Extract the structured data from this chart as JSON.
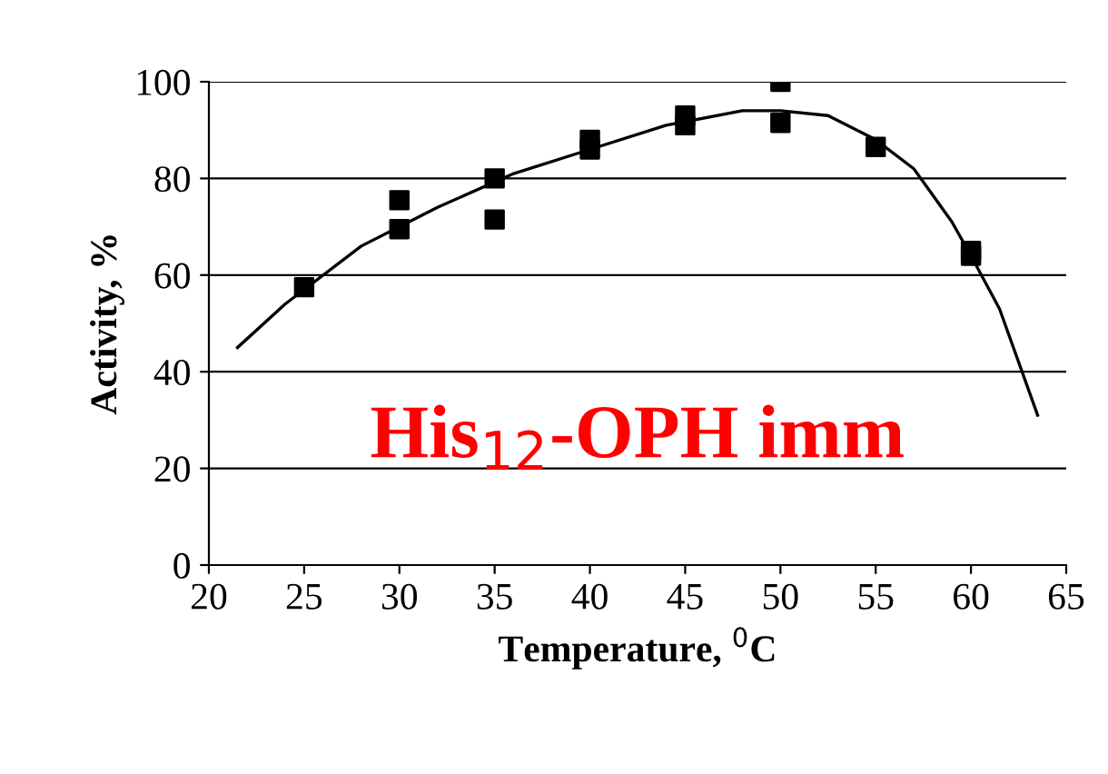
{
  "chart_data": {
    "type": "scatter",
    "xlabel": "Temperature, $^{0}$C",
    "ylabel": "Activity, %",
    "xlim": [
      20,
      65
    ],
    "xticks": [
      20,
      25,
      30,
      35,
      40,
      45,
      50,
      55,
      60,
      65
    ],
    "ylim": [
      0,
      100
    ],
    "yticks": [
      0,
      20,
      40,
      60,
      80,
      100
    ],
    "grid": "y",
    "marker": "square",
    "annotations": [
      "His$_{12}$-OPH imm"
    ],
    "series": [
      {
        "color": "#000000",
        "x": [
          25,
          30,
          30,
          35,
          35,
          40,
          40,
          45,
          45,
          50,
          50,
          55,
          60,
          60
        ],
        "values": [
          57.5,
          75.5,
          69.5,
          80,
          71.5,
          88,
          86,
          93,
          91,
          100,
          91.5,
          86.5,
          65,
          64
        ]
      },
      {
        "type": "line",
        "color": "#000000",
        "marker": "none",
        "x": [
          21.5,
          24,
          28,
          32,
          36,
          40,
          44,
          48,
          50,
          52.5,
          55,
          57,
          59,
          60,
          61.5,
          63.5
        ],
        "values": [
          45,
          54,
          66,
          74,
          81,
          86,
          91,
          94,
          94,
          93,
          88,
          82,
          71,
          64,
          53,
          31
        ]
      }
    ]
  }
}
